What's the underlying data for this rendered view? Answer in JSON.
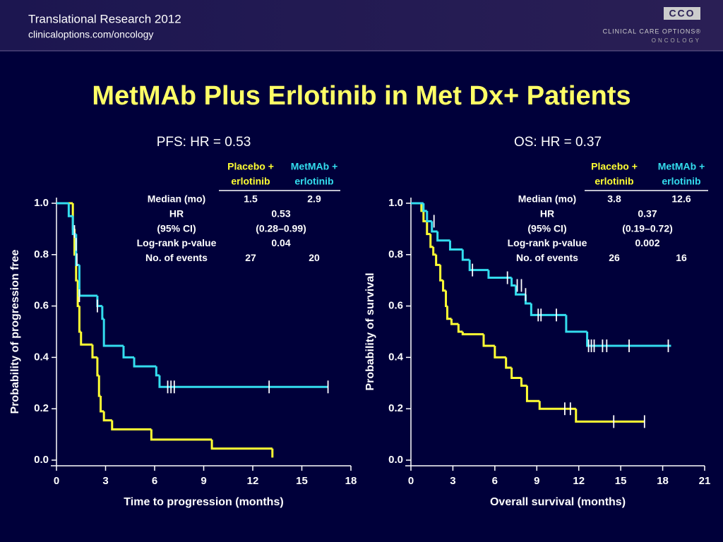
{
  "header": {
    "conference": "Translational Research 2012",
    "url": "clinicaloptions.com/oncology",
    "logo": "CCO",
    "brand": "CLINICAL CARE OPTIONS®",
    "brand_sub": "ONCOLOGY"
  },
  "title": "MetMAb Plus Erlotinib in Met Dx+ Patients",
  "chart_data": [
    {
      "type": "step",
      "title": "PFS: HR = 0.53",
      "x_label": "Time to progression (months)",
      "y_label": "Probability of progression free",
      "xlim": [
        0,
        18
      ],
      "xticks": [
        0,
        3,
        6,
        9,
        12,
        15,
        18
      ],
      "ylim": [
        0,
        1
      ],
      "yticks": [
        {
          "value": 0,
          "label": "0.0"
        },
        {
          "value": 0.2,
          "label": "0.2"
        },
        {
          "value": 0.4,
          "label": "0.4"
        },
        {
          "value": 0.6,
          "label": "0.6"
        },
        {
          "value": 0.8,
          "label": "0.8"
        },
        {
          "value": 1,
          "label": "1.0"
        }
      ],
      "series": [
        {
          "name": "Placebo + erlotinib",
          "color": "#ffff33",
          "x": [
            0,
            1.0,
            1.1,
            1.2,
            1.3,
            1.4,
            1.5,
            2.2,
            2.5,
            2.6,
            2.7,
            2.9,
            3.4,
            5.8,
            9.5,
            13.2
          ],
          "values": [
            1.0,
            0.9,
            0.8,
            0.7,
            0.6,
            0.5,
            0.45,
            0.4,
            0.33,
            0.25,
            0.19,
            0.155,
            0.12,
            0.08,
            0.045,
            0.01
          ],
          "censored": {
            "x": [],
            "values": []
          }
        },
        {
          "name": "MetMAb + erlotinib",
          "color": "#33ddee",
          "x": [
            0,
            0.75,
            1.0,
            1.2,
            1.4,
            2.5,
            2.8,
            2.9,
            4.1,
            4.75,
            6.1,
            6.3,
            16.6
          ],
          "values": [
            1.0,
            0.95,
            0.88,
            0.76,
            0.64,
            0.6,
            0.55,
            0.445,
            0.4,
            0.365,
            0.33,
            0.285,
            0.285
          ],
          "censored": {
            "x": [
              1.1,
              1.2,
              1.25,
              1.4,
              2.5,
              6.8,
              7.0,
              7.2,
              13.0,
              16.6
            ],
            "values": [
              0.89,
              0.84,
              0.78,
              0.64,
              0.6,
              0.285,
              0.285,
              0.285,
              0.285,
              0.285
            ]
          }
        }
      ],
      "table": {
        "headers": [
          [
            "Placebo +",
            "erlotinib"
          ],
          [
            "MetMAb +",
            "erlotinib"
          ]
        ],
        "rows": [
          [
            "Median (mo)",
            "1.5",
            "2.9"
          ],
          [
            "HR",
            "0.53"
          ],
          [
            "(95% CI)",
            "(0.28–0.99)"
          ],
          [
            "Log-rank p-value",
            "0.04"
          ],
          [
            "No. of events",
            "27",
            "20"
          ]
        ]
      }
    },
    {
      "type": "step",
      "title": "OS: HR = 0.37",
      "x_label": "Overall survival (months)",
      "y_label": "Probability of survival",
      "xlim": [
        0,
        21
      ],
      "xticks": [
        0,
        3,
        6,
        9,
        12,
        15,
        18,
        21
      ],
      "ylim": [
        0,
        1
      ],
      "yticks": [
        {
          "value": 0,
          "label": "0.0"
        },
        {
          "value": 0.2,
          "label": "0.2"
        },
        {
          "value": 0.4,
          "label": "0.4"
        },
        {
          "value": 0.6,
          "label": "0.6"
        },
        {
          "value": 0.8,
          "label": "0.8"
        },
        {
          "value": 1,
          "label": "1.0"
        }
      ],
      "series": [
        {
          "name": "Placebo + erlotinib",
          "color": "#ffff33",
          "x": [
            0,
            0.75,
            0.9,
            1.15,
            1.4,
            1.6,
            1.8,
            2.1,
            2.3,
            2.5,
            2.6,
            2.9,
            3.4,
            3.7,
            5.2,
            6.0,
            6.8,
            7.2,
            7.9,
            8.3,
            9.2,
            11.8,
            16.7
          ],
          "values": [
            1.0,
            0.97,
            0.93,
            0.88,
            0.83,
            0.8,
            0.76,
            0.7,
            0.66,
            0.6,
            0.55,
            0.53,
            0.5,
            0.49,
            0.445,
            0.4,
            0.36,
            0.32,
            0.29,
            0.23,
            0.2,
            0.15,
            0.15
          ],
          "censored": {
            "x": [
              11.0,
              11.4,
              14.5,
              16.7
            ],
            "values": [
              0.2,
              0.2,
              0.15,
              0.15
            ]
          }
        },
        {
          "name": "MetMAb + erlotinib",
          "color": "#33ddee",
          "x": [
            0,
            0.9,
            1.15,
            1.5,
            1.9,
            2.8,
            3.7,
            4.2,
            5.55,
            7.2,
            7.5,
            8.2,
            8.6,
            11.1,
            12.6,
            18.6
          ],
          "values": [
            1.0,
            0.97,
            0.93,
            0.89,
            0.855,
            0.82,
            0.78,
            0.74,
            0.71,
            0.68,
            0.645,
            0.61,
            0.565,
            0.5,
            0.445,
            0.445
          ],
          "censored": {
            "x": [
              1.65,
              4.4,
              6.9,
              7.6,
              7.9,
              8.2,
              9.1,
              9.3,
              10.4,
              12.7,
              12.9,
              13.1,
              13.7,
              14.0,
              15.6,
              18.4
            ],
            "values": [
              0.93,
              0.74,
              0.71,
              0.68,
              0.68,
              0.645,
              0.565,
              0.565,
              0.565,
              0.445,
              0.445,
              0.445,
              0.445,
              0.445,
              0.445,
              0.445
            ]
          }
        }
      ],
      "table": {
        "headers": [
          [
            "Placebo +",
            "erlotinib"
          ],
          [
            "MetMAb +",
            "erlotinib"
          ]
        ],
        "rows": [
          [
            "Median (mo)",
            "3.8",
            "12.6"
          ],
          [
            "HR",
            "0.37"
          ],
          [
            "(95% CI)",
            "(0.19–0.72)"
          ],
          [
            "Log-rank p-value",
            "0.002"
          ],
          [
            "No. of events",
            "26",
            "16"
          ]
        ]
      }
    }
  ]
}
